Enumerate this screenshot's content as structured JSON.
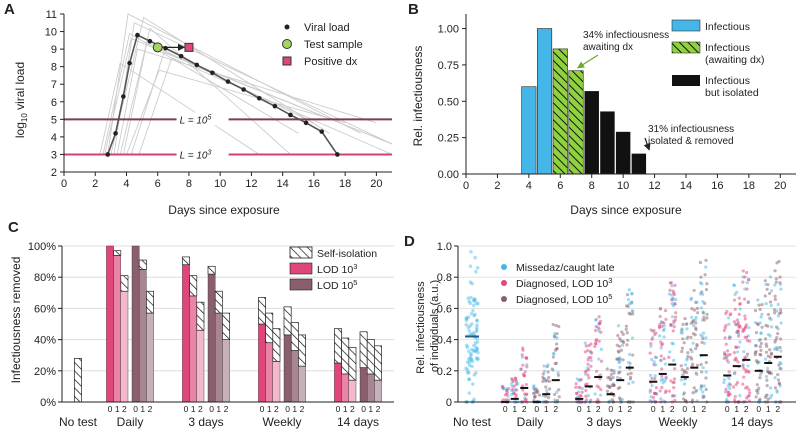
{
  "panel_labels": [
    "A",
    "B",
    "C",
    "D"
  ],
  "colors": {
    "infectious": "#44b6e8",
    "awaiting": "#8fd13f",
    "isolated": "#111111",
    "lod3": "#e0457b",
    "lod5": "#8a5f6d",
    "trajectory": "#666666",
    "ghost": "#cccccc",
    "threshold5": "#7c3d4f",
    "threshold3": "#d43d7e",
    "test_marker": "#a4d65e",
    "positive_marker": "#d94a7a"
  },
  "chart_data": [
    {
      "panel": "A",
      "type": "line",
      "xlabel": "Days since exposure",
      "ylabel": "log10 viral load",
      "ylabel_main": "log",
      "ylabel_sub": "10",
      "ylabel_tail": " viral load",
      "xlim": [
        0,
        21
      ],
      "ylim": [
        2,
        11
      ],
      "xticks": [
        "0",
        "2",
        "4",
        "6",
        "8",
        "10",
        "12",
        "14",
        "16",
        "18",
        "20"
      ],
      "yticks": [
        "2",
        "3",
        "4",
        "5",
        "6",
        "7",
        "8",
        "9",
        "10",
        "11"
      ],
      "series": [
        {
          "name": "Viral load",
          "x": [
            2.8,
            3.3,
            3.8,
            4.2,
            4.7,
            5.5,
            6.5,
            7.5,
            8.5,
            9.5,
            10.5,
            11.5,
            12.5,
            13.5,
            14.5,
            15.5,
            16.5,
            17.5
          ],
          "y": [
            3.0,
            4.2,
            6.3,
            8.2,
            9.8,
            9.45,
            9.05,
            8.6,
            8.1,
            7.65,
            7.15,
            6.7,
            6.2,
            5.75,
            5.25,
            4.8,
            4.3,
            3.0
          ]
        }
      ],
      "test_sample": {
        "x": 6.0,
        "y": 9.1
      },
      "positive_dx": {
        "x": 8.0,
        "y": 9.1
      },
      "thresholds": [
        {
          "label": "L = 10",
          "exponent": "5",
          "y": 5
        },
        {
          "label": "L = 10",
          "exponent": "3",
          "y": 3
        }
      ],
      "legend": [
        "Viral load",
        "Test sample",
        "Positive dx"
      ],
      "legend_position": "top-right"
    },
    {
      "panel": "B",
      "type": "bar",
      "xlabel": "Days since exposure",
      "ylabel": "Rel. infectiousness",
      "xlim": [
        0,
        21
      ],
      "ylim": [
        0,
        1.1
      ],
      "xticks": [
        "0",
        "2",
        "4",
        "6",
        "8",
        "10",
        "12",
        "14",
        "16",
        "18",
        "20"
      ],
      "yticks": [
        "0.00",
        "0.25",
        "0.50",
        "0.75",
        "1.00"
      ],
      "bars": [
        {
          "day": 4,
          "value": 0.6,
          "state": "infectious"
        },
        {
          "day": 5,
          "value": 1.0,
          "state": "infectious"
        },
        {
          "day": 6,
          "value": 0.86,
          "state": "awaiting"
        },
        {
          "day": 7,
          "value": 0.71,
          "state": "awaiting"
        },
        {
          "day": 8,
          "value": 0.57,
          "state": "isolated"
        },
        {
          "day": 9,
          "value": 0.43,
          "state": "isolated"
        },
        {
          "day": 10,
          "value": 0.29,
          "state": "isolated"
        },
        {
          "day": 11,
          "value": 0.14,
          "state": "isolated"
        }
      ],
      "legend": [
        "Infectious",
        "Infectious\n(awaiting dx)",
        "Infectious\nbut isolated"
      ],
      "legend_position": "top-right",
      "annotations": [
        {
          "text": "34% infectiousness\nawaiting dx",
          "points_to_day": 7
        },
        {
          "text": "31% infectiousness\nisolated & removed",
          "points_to_day": 11
        }
      ]
    },
    {
      "panel": "C",
      "type": "bar",
      "ylabel": "Infectiousness removed",
      "ylim": [
        0,
        100
      ],
      "yticks": [
        "0%",
        "20%",
        "40%",
        "60%",
        "80%",
        "100%"
      ],
      "categories": [
        "No test",
        "Daily",
        "3 days",
        "Weekly",
        "14 days"
      ],
      "sub_ticks": [
        "0",
        "1",
        "2"
      ],
      "legend": [
        "Self-isolation",
        "LOD 10",
        "LOD 10"
      ],
      "legend_exponents": [
        "",
        "3",
        "5"
      ],
      "legend_position": "top-right",
      "no_test": {
        "total": 28,
        "solid": 0
      },
      "groups": [
        {
          "category": "Daily",
          "lod3": [
            {
              "total": 100,
              "solid": 100
            },
            {
              "total": 97,
              "solid": 94
            },
            {
              "total": 81,
              "solid": 71
            }
          ],
          "lod5": [
            {
              "total": 100,
              "solid": 100
            },
            {
              "total": 91,
              "solid": 85
            },
            {
              "total": 71,
              "solid": 57
            }
          ]
        },
        {
          "category": "3 days",
          "lod3": [
            {
              "total": 93,
              "solid": 88
            },
            {
              "total": 81,
              "solid": 68
            },
            {
              "total": 64,
              "solid": 46
            }
          ],
          "lod5": [
            {
              "total": 87,
              "solid": 82
            },
            {
              "total": 71,
              "solid": 57
            },
            {
              "total": 57,
              "solid": 40
            }
          ]
        },
        {
          "category": "Weekly",
          "lod3": [
            {
              "total": 67,
              "solid": 50
            },
            {
              "total": 57,
              "solid": 38
            },
            {
              "total": 47,
              "solid": 26
            }
          ],
          "lod5": [
            {
              "total": 61,
              "solid": 43
            },
            {
              "total": 51,
              "solid": 33
            },
            {
              "total": 43,
              "solid": 23
            }
          ]
        },
        {
          "category": "14 days",
          "lod3": [
            {
              "total": 47,
              "solid": 25
            },
            {
              "total": 41,
              "solid": 18
            },
            {
              "total": 35,
              "solid": 14
            }
          ],
          "lod5": [
            {
              "total": 45,
              "solid": 22
            },
            {
              "total": 40,
              "solid": 18
            },
            {
              "total": 36,
              "solid": 14
            }
          ]
        }
      ]
    },
    {
      "panel": "D",
      "type": "scatter",
      "ylabel_line1": "Rel. infectiousness",
      "ylabel_line2": "of individuals (a.u.)",
      "ylim": [
        0,
        1.0
      ],
      "yticks": [
        "0",
        "0.2",
        "0.4",
        "0.6",
        "0.8",
        "1.0"
      ],
      "categories": [
        "No test",
        "Daily",
        "3 days",
        "Weekly",
        "14 days"
      ],
      "sub_ticks": [
        "0",
        "1",
        "2"
      ],
      "legend": [
        "Missedaz/caught late",
        "Diagnosed, LOD 10",
        "Diagnosed, LOD 10"
      ],
      "legend_exponents": [
        "",
        "3",
        "5"
      ],
      "legend_position": "top-left",
      "no_test_mean": 0.42,
      "group_means": [
        {
          "category": "Daily",
          "lod3": [
            0.0,
            0.02,
            0.09
          ],
          "lod5": [
            0.0,
            0.05,
            0.14
          ]
        },
        {
          "category": "3 days",
          "lod3": [
            0.02,
            0.1,
            0.16
          ],
          "lod5": [
            0.05,
            0.14,
            0.22
          ]
        },
        {
          "category": "Weekly",
          "lod3": [
            0.13,
            0.18,
            0.24
          ],
          "lod5": [
            0.16,
            0.22,
            0.3
          ]
        },
        {
          "category": "14 days",
          "lod3": [
            0.17,
            0.23,
            0.27
          ],
          "lod5": [
            0.2,
            0.25,
            0.29
          ]
        }
      ]
    }
  ]
}
